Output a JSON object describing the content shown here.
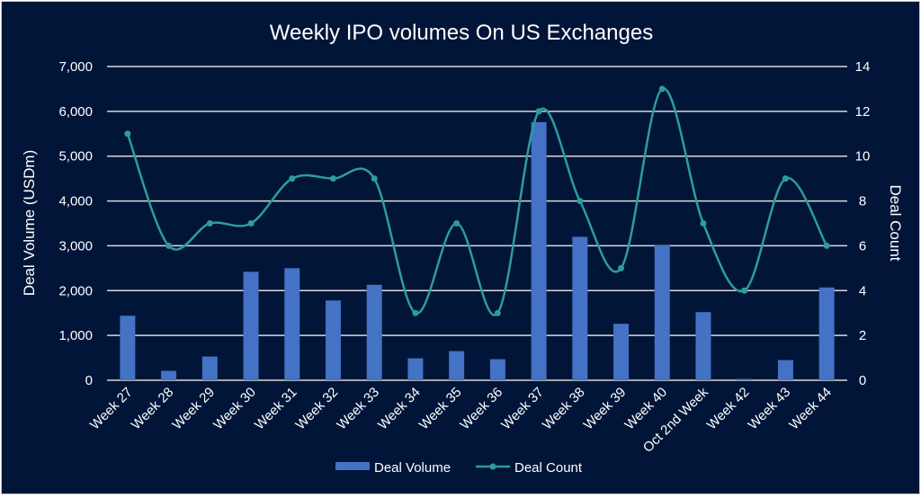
{
  "chart_data": {
    "type": "bar+line",
    "title": "Weekly IPO volumes On US Exchanges",
    "categories": [
      "Week 27",
      "Week 28",
      "Week 29",
      "Week 30",
      "Week 31",
      "Week 32",
      "Week 33",
      "Week 34",
      "Week 35",
      "Week 36",
      "Week 37",
      "Week 38",
      "Week 39",
      "Week 40",
      "Oct 2nd Week",
      "Week 42",
      "Week 43",
      "Week 44"
    ],
    "series": [
      {
        "name": "Deal Volume",
        "type": "bar",
        "axis": "left",
        "color": "#4472C4",
        "values": [
          1440,
          210,
          530,
          2420,
          2500,
          1780,
          2130,
          490,
          650,
          470,
          5760,
          3200,
          1260,
          3010,
          1520,
          30,
          450,
          2070
        ]
      },
      {
        "name": "Deal Count",
        "type": "line",
        "axis": "right",
        "color": "#2E9C9A",
        "smooth": true,
        "markers": true,
        "values": [
          11,
          6,
          7,
          7,
          9,
          9,
          9,
          3,
          7,
          3,
          12,
          8,
          5,
          13,
          7,
          4,
          9,
          6
        ]
      }
    ],
    "ylabel": "Deal Volume (USDm)",
    "y2label": "Deal Count",
    "ylim": [
      0,
      7000
    ],
    "y2lim": [
      0,
      14
    ],
    "yticks": [
      "0",
      "1,000",
      "2,000",
      "3,000",
      "4,000",
      "5,000",
      "6,000",
      "7,000"
    ],
    "y2ticks": [
      "0",
      "2",
      "4",
      "6",
      "8",
      "10",
      "12",
      "14"
    ],
    "grid": true,
    "legend": "bottom",
    "background": "#001538"
  }
}
